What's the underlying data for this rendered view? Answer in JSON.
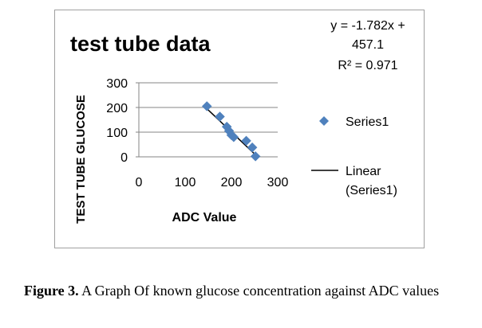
{
  "chart_data": {
    "type": "scatter",
    "title": "test tube data",
    "xlabel": "ADC Value",
    "ylabel": "TEST TUBE GLUCOSE",
    "xlim": [
      0,
      300
    ],
    "ylim": [
      0,
      300
    ],
    "x_ticks": [
      "0",
      "100",
      "200",
      "300"
    ],
    "y_ticks": [
      "0",
      "100",
      "200",
      "300"
    ],
    "grid": true,
    "legend_position": "right",
    "series": [
      {
        "name": "Series1",
        "color": "#4f81bd",
        "marker": "diamond",
        "points": [
          [
            147,
            205
          ],
          [
            175,
            163
          ],
          [
            190,
            122
          ],
          [
            195,
            105
          ],
          [
            200,
            88
          ],
          [
            205,
            80
          ],
          [
            232,
            65
          ],
          [
            245,
            38
          ],
          [
            252,
            2
          ]
        ]
      }
    ],
    "trendline": {
      "name": "Linear (Series1)",
      "color": "#000000",
      "slope": -1.782,
      "intercept": 457.1,
      "x_range": [
        143,
        253
      ]
    },
    "equation_lines": [
      "y = -1.782x +",
      "457.1",
      "R² = 0.971"
    ]
  },
  "caption": {
    "label": "Figure 3.",
    "text": " A Graph Of known glucose concentration against ADC values"
  }
}
